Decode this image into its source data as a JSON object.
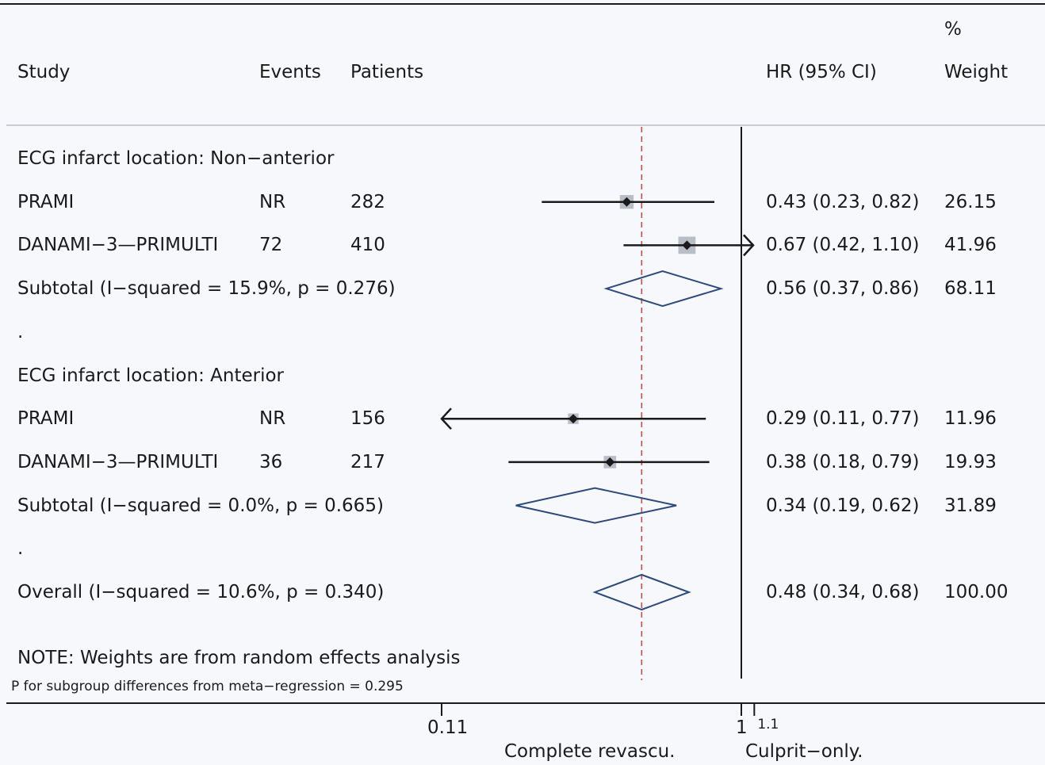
{
  "chart_data": {
    "type": "forest",
    "columns": {
      "study": "Study",
      "events": "Events",
      "patients": "Patients",
      "hr": "HR (95% CI)",
      "weight_line1": "%",
      "weight_line2": "Weight"
    },
    "rows": [
      {
        "kind": "group",
        "label": "ECG infarct location: Non−anterior"
      },
      {
        "kind": "study",
        "label": "PRAMI",
        "events": "NR",
        "patients": "282",
        "hr": 0.43,
        "lo": 0.23,
        "hi": 0.82,
        "hr_text": "0.43 (0.23, 0.82)",
        "weight": "26.15",
        "w": 26.15
      },
      {
        "kind": "study",
        "label": "DANAMI−3—PRIMULTI",
        "events": "72",
        "patients": "410",
        "hr": 0.67,
        "lo": 0.42,
        "hi": 1.1,
        "arrow": "right",
        "hr_text": "0.67 (0.42, 1.10)",
        "weight": "41.96",
        "w": 41.96
      },
      {
        "kind": "subtotal",
        "label": "Subtotal  (I−squared = 15.9%, p = 0.276)",
        "hr": 0.56,
        "lo": 0.37,
        "hi": 0.86,
        "hr_text": "0.56 (0.37, 0.86)",
        "weight": "68.11"
      },
      {
        "kind": "dot",
        "label": "."
      },
      {
        "kind": "group",
        "label": "ECG infarct location: Anterior"
      },
      {
        "kind": "study",
        "label": "PRAMI",
        "events": "NR",
        "patients": "156",
        "hr": 0.29,
        "lo": 0.11,
        "hi": 0.77,
        "arrow": "left",
        "hr_text": "0.29 (0.11, 0.77)",
        "weight": "11.96",
        "w": 11.96
      },
      {
        "kind": "study",
        "label": "DANAMI−3—PRIMULTI",
        "events": "36",
        "patients": "217",
        "hr": 0.38,
        "lo": 0.18,
        "hi": 0.79,
        "hr_text": "0.38 (0.18, 0.79)",
        "weight": "19.93",
        "w": 19.93
      },
      {
        "kind": "subtotal",
        "label": "Subtotal  (I−squared = 0.0%, p = 0.665)",
        "hr": 0.34,
        "lo": 0.19,
        "hi": 0.62,
        "hr_text": "0.34 (0.19, 0.62)",
        "weight": "31.89"
      },
      {
        "kind": "dot",
        "label": "."
      },
      {
        "kind": "overall",
        "label": "Overall  (I−squared = 10.6%, p = 0.340)",
        "hr": 0.48,
        "lo": 0.34,
        "hi": 0.68,
        "hr_text": "0.48 (0.34, 0.68)",
        "weight": "100.00"
      }
    ],
    "note": "NOTE: Weights are from random effects analysis",
    "footnote": "P for subgroup differences from meta−regression = 0.295",
    "x_axis": {
      "scale": "log",
      "ticks": [
        {
          "value": 0.11,
          "label": "0.11"
        },
        {
          "value": 1,
          "label": "1"
        },
        {
          "value": 1.1,
          "label": "1.1"
        }
      ],
      "null_line": 1,
      "overall_line": 0.48,
      "left_label": "Complete revascu.",
      "right_label": "Culprit−only."
    },
    "colors": {
      "diamond": "#2e4a7a",
      "box": "#b9bec6",
      "overall_line": "#c0504d",
      "text": "#1a1a1a"
    }
  }
}
